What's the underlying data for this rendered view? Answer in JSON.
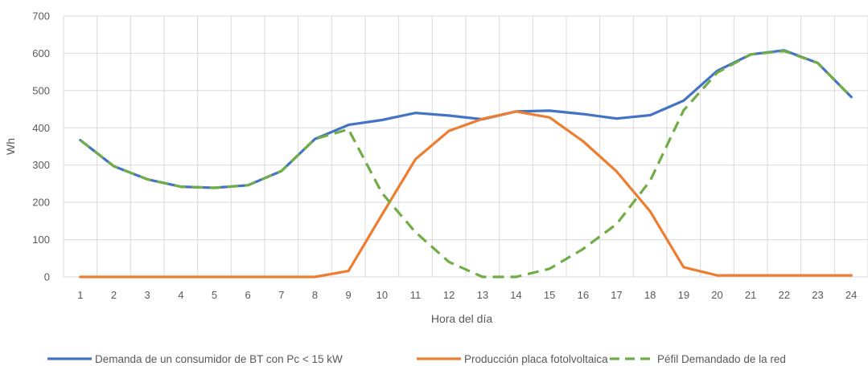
{
  "chart_data": {
    "type": "line",
    "title": "",
    "xlabel": "Hora del día",
    "ylabel": "Wh",
    "ylim": [
      0,
      700
    ],
    "yticks": [
      0,
      100,
      200,
      300,
      400,
      500,
      600,
      700
    ],
    "categories": [
      "1",
      "2",
      "3",
      "4",
      "5",
      "6",
      "7",
      "8",
      "9",
      "10",
      "11",
      "12",
      "13",
      "14",
      "15",
      "16",
      "17",
      "18",
      "19",
      "20",
      "21",
      "22",
      "23",
      "24"
    ],
    "grid": true,
    "legend_position": "bottom",
    "series": [
      {
        "name": "Demanda de un consumidor de BT con Pc < 15 kW",
        "color": "#4472C4",
        "dash": "solid",
        "values": [
          367,
          297,
          262,
          242,
          239,
          246,
          284,
          370,
          408,
          421,
          440,
          433,
          423,
          444,
          446,
          437,
          425,
          434,
          473,
          553,
          597,
          608,
          574,
          483
        ]
      },
      {
        "name": "Producción placa fotolvoltaica",
        "color": "#ED7D31",
        "dash": "solid",
        "values": [
          0,
          0,
          0,
          0,
          0,
          0,
          0,
          0,
          16,
          167,
          316,
          392,
          424,
          444,
          428,
          364,
          283,
          176,
          26,
          4,
          4,
          4,
          4,
          4
        ]
      },
      {
        "name": "Péfil Demandado de la red",
        "color": "#70AD47",
        "dash": "dashed",
        "values": [
          367,
          297,
          262,
          242,
          239,
          246,
          284,
          370,
          396,
          225,
          120,
          40,
          0,
          0,
          22,
          75,
          142,
          258,
          447,
          548,
          597,
          606,
          574,
          483
        ]
      }
    ]
  }
}
